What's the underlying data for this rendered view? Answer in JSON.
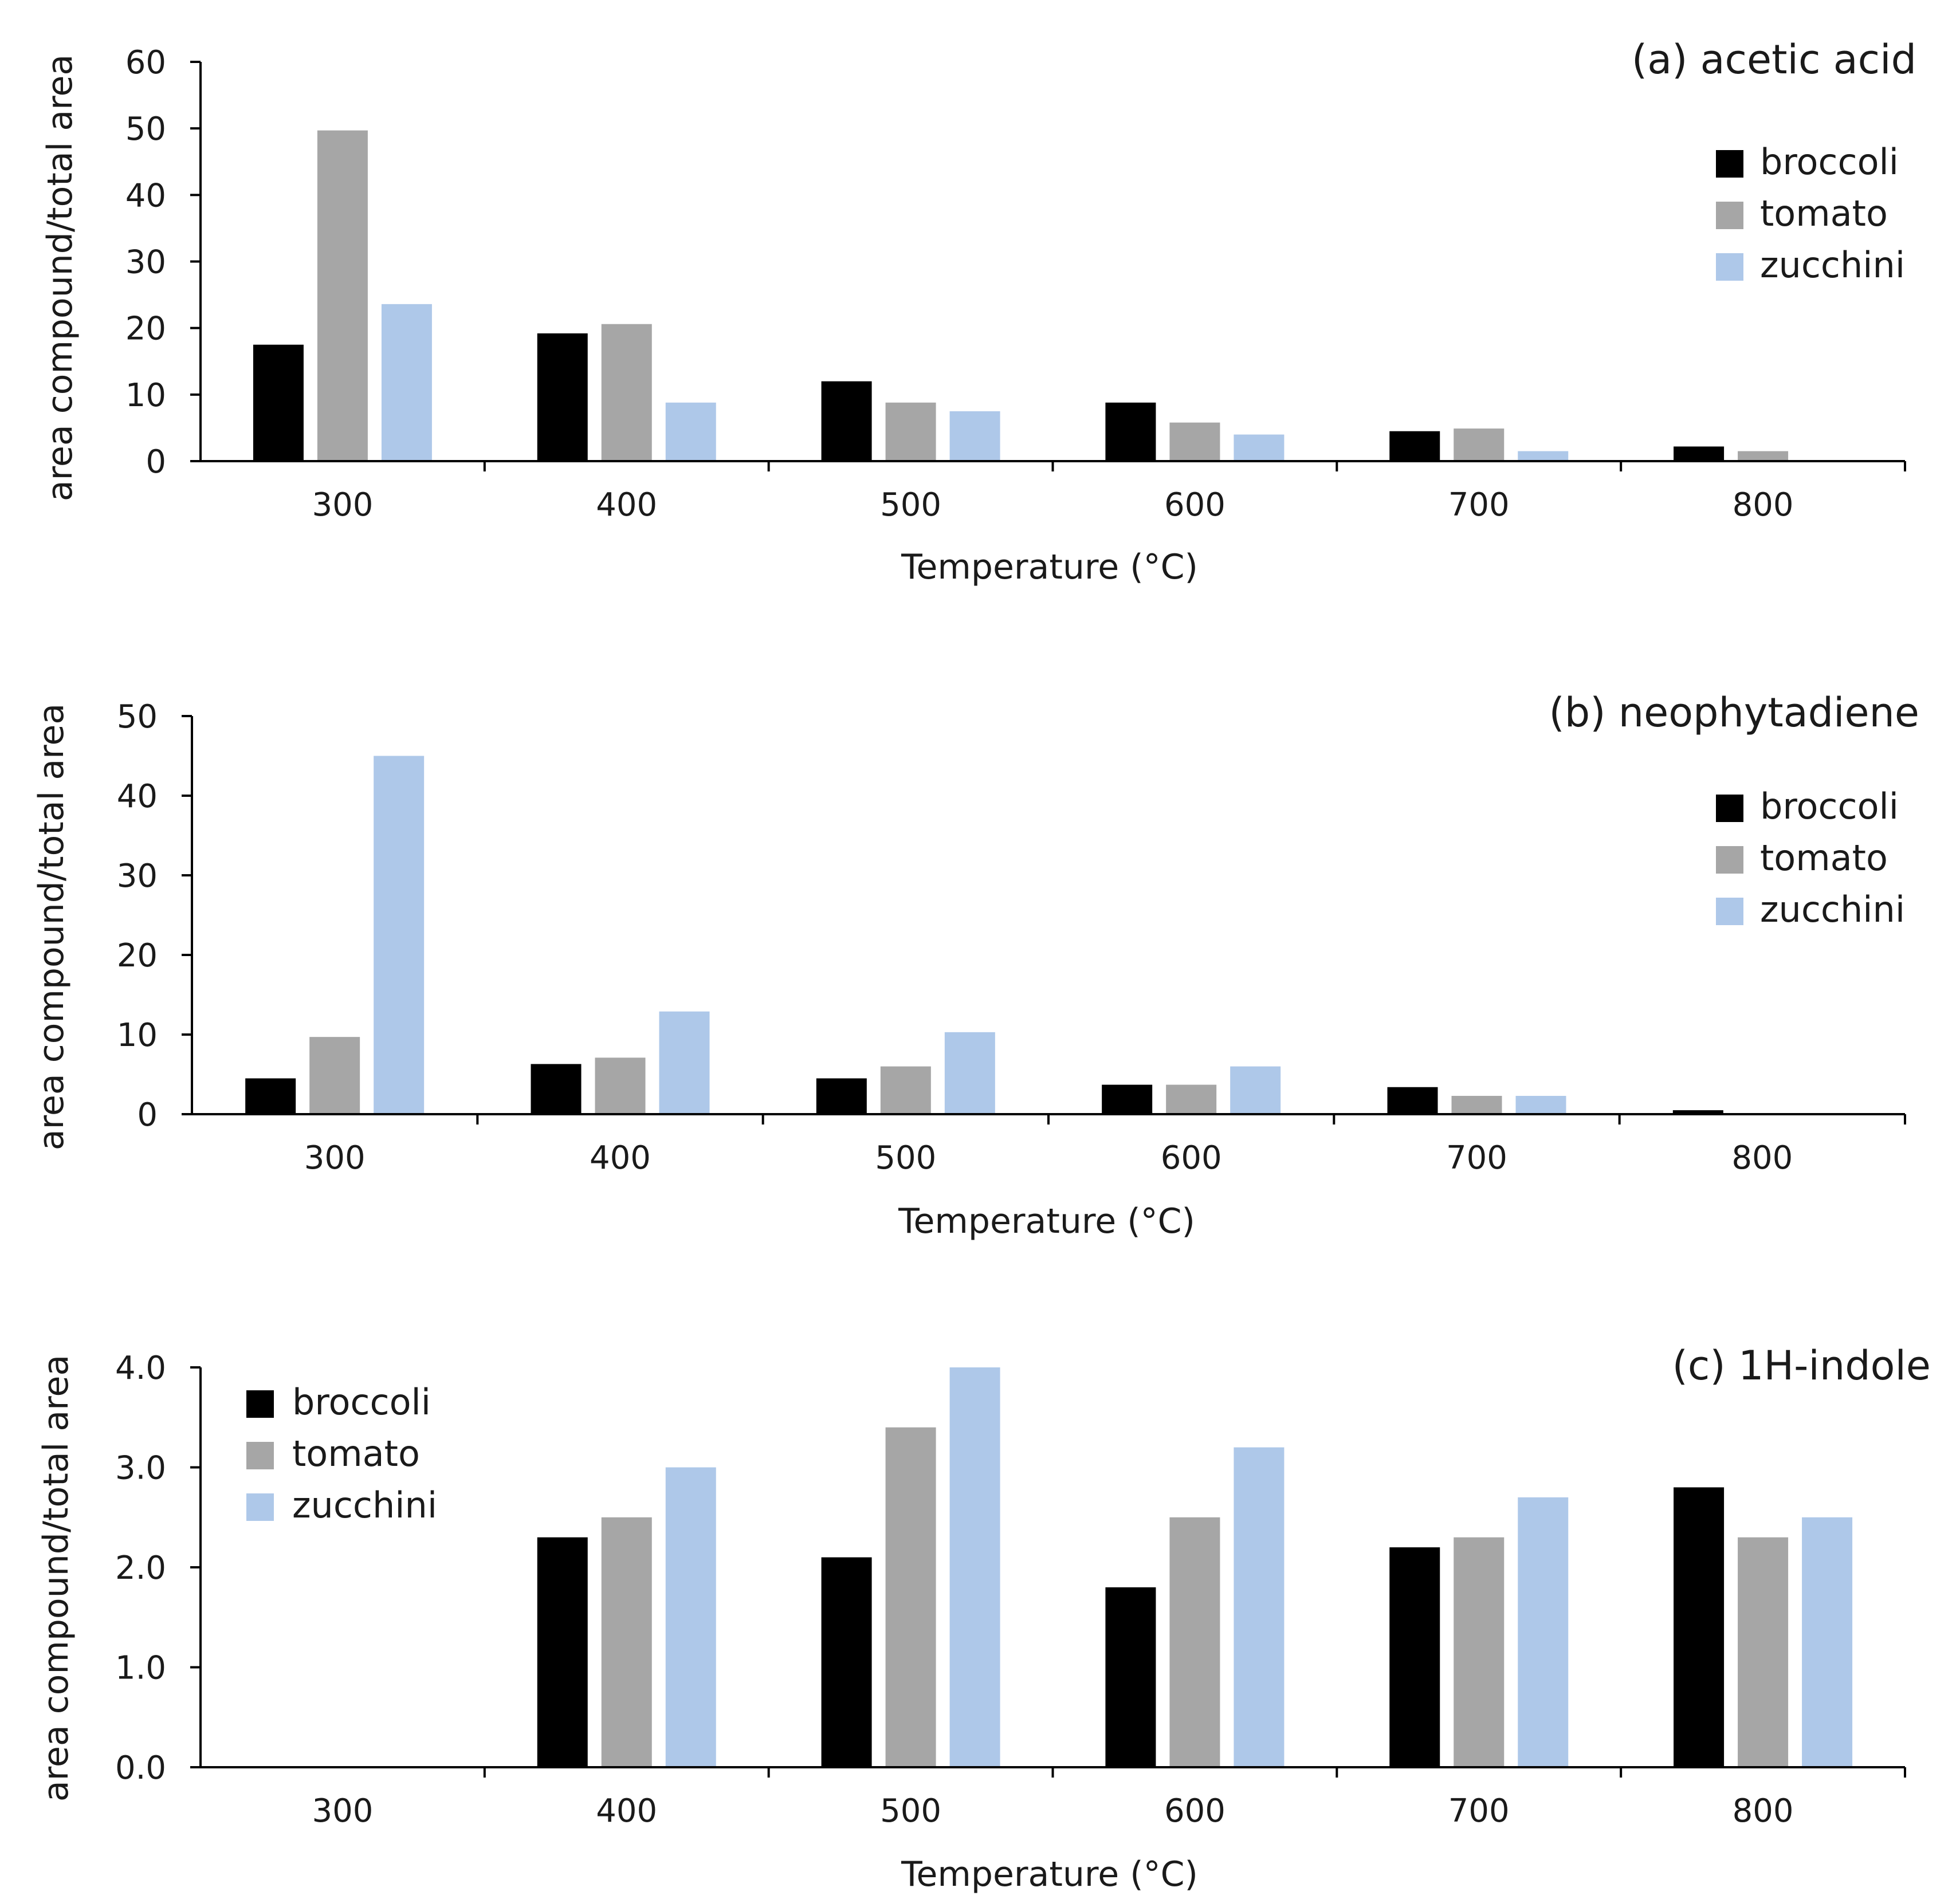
{
  "colors": {
    "broccoli": "#000000",
    "tomato": "#a6a6a6",
    "zucchini": "#aec8e9"
  },
  "chart_data": [
    {
      "type": "bar",
      "title": "(a) acetic acid",
      "xlabel": "Temperature (°C)",
      "ylabel": "area compound/total  area",
      "categories": [
        "300",
        "400",
        "500",
        "600",
        "700",
        "800"
      ],
      "ylim": [
        0,
        60
      ],
      "yticks": [
        "0",
        "10",
        "20",
        "30",
        "40",
        "50",
        "60"
      ],
      "legend_position": "top-right",
      "grid": false,
      "series": [
        {
          "name": "broccoli",
          "color": "#000000",
          "values": [
            17.5,
            19.2,
            12.0,
            8.8,
            4.5,
            2.2
          ]
        },
        {
          "name": "tomato",
          "color": "#a6a6a6",
          "values": [
            49.7,
            20.6,
            8.8,
            5.8,
            4.9,
            1.5
          ]
        },
        {
          "name": "zucchini",
          "color": "#aec8e9",
          "values": [
            23.6,
            8.8,
            7.5,
            4.0,
            1.5,
            0
          ]
        }
      ]
    },
    {
      "type": "bar",
      "title": "(b) neophytadiene",
      "xlabel": "Temperature (°C)",
      "ylabel": "area compound/total  area",
      "categories": [
        "300",
        "400",
        "500",
        "600",
        "700",
        "800"
      ],
      "ylim": [
        0,
        50
      ],
      "yticks": [
        "0",
        "10",
        "20",
        "30",
        "40",
        "50"
      ],
      "legend_position": "top-right",
      "grid": false,
      "series": [
        {
          "name": "broccoli",
          "color": "#000000",
          "values": [
            4.5,
            6.3,
            4.5,
            3.7,
            3.4,
            0.5
          ]
        },
        {
          "name": "tomato",
          "color": "#a6a6a6",
          "values": [
            9.7,
            7.1,
            6.0,
            3.7,
            2.3,
            0
          ]
        },
        {
          "name": "zucchini",
          "color": "#aec8e9",
          "values": [
            45.0,
            12.9,
            10.3,
            6.0,
            2.3,
            0
          ]
        }
      ]
    },
    {
      "type": "bar",
      "title": "(c) 1H-indole",
      "xlabel": "Temperature (°C)",
      "ylabel": "area compound/total  area",
      "categories": [
        "300",
        "400",
        "500",
        "600",
        "700",
        "800"
      ],
      "ylim": [
        0,
        4.0
      ],
      "yticks": [
        "0.0",
        "1.0",
        "2.0",
        "3.0",
        "4.0"
      ],
      "legend_position": "top-left",
      "grid": false,
      "series": [
        {
          "name": "broccoli",
          "color": "#000000",
          "values": [
            0,
            2.3,
            2.1,
            1.8,
            2.2,
            2.8
          ]
        },
        {
          "name": "tomato",
          "color": "#a6a6a6",
          "values": [
            0,
            2.5,
            3.4,
            2.5,
            2.3,
            2.3
          ]
        },
        {
          "name": "zucchini",
          "color": "#aec8e9",
          "values": [
            0,
            3.0,
            4.0,
            3.2,
            2.7,
            2.5
          ]
        }
      ]
    }
  ]
}
